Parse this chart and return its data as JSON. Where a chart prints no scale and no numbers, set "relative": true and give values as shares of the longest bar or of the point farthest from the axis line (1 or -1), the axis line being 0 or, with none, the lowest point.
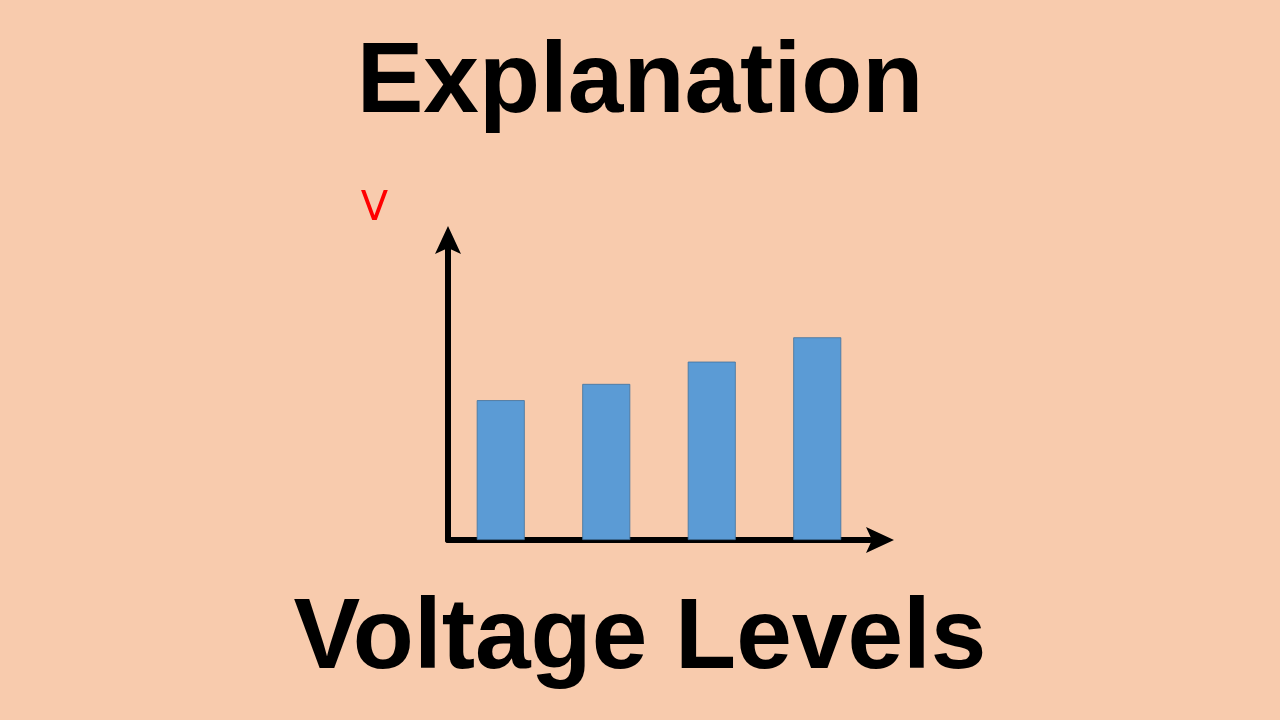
{
  "chart_data": {
    "type": "bar",
    "title": "Explanation",
    "subtitle": "Voltage Levels",
    "ylabel": "V",
    "relative": true,
    "categories": [
      null,
      null,
      null,
      null
    ],
    "values": [
      0.69,
      0.77,
      0.88,
      1
    ],
    "color": "#5b9bd5",
    "grid": false
  }
}
